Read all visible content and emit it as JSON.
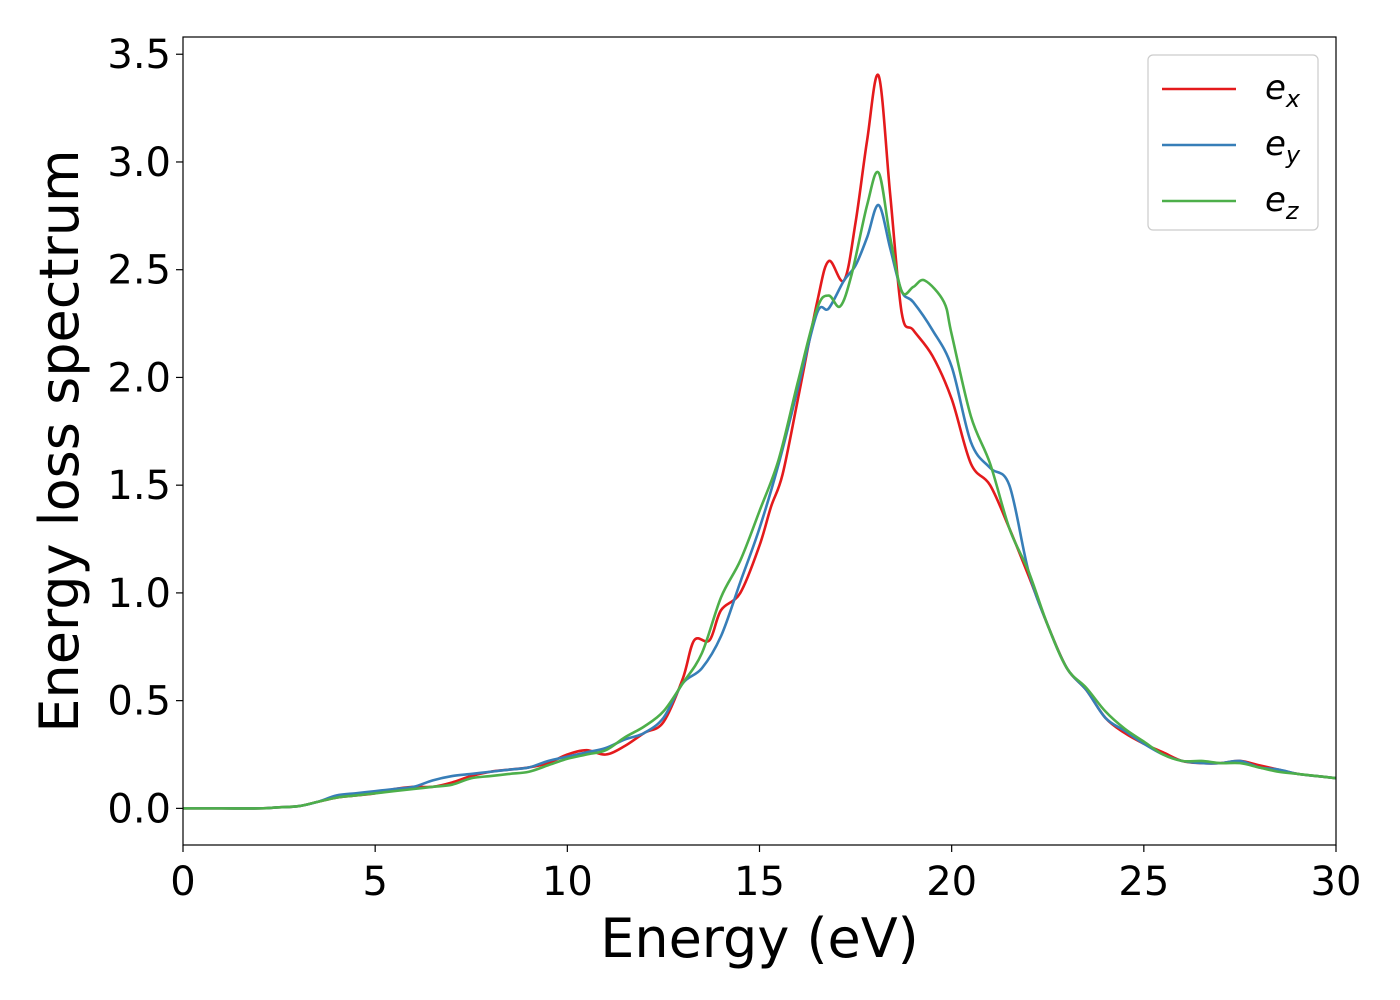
{
  "chart_data": {
    "type": "line",
    "xlabel": "Energy (eV)",
    "ylabel": "Energy loss spectrum",
    "xlim": [
      0,
      30
    ],
    "ylim": [
      -0.17,
      3.58
    ],
    "xticks": [
      0,
      5,
      10,
      15,
      20,
      25,
      30
    ],
    "xtick_labels": [
      "0",
      "5",
      "10",
      "15",
      "20",
      "25",
      "30"
    ],
    "yticks": [
      0.0,
      0.5,
      1.0,
      1.5,
      2.0,
      2.5,
      3.0,
      3.5
    ],
    "ytick_labels": [
      "0.0",
      "0.5",
      "1.0",
      "1.5",
      "2.0",
      "2.5",
      "3.0",
      "3.5"
    ],
    "grid": false,
    "legend_position": "top-right",
    "series": [
      {
        "name": "e",
        "subscript": "x",
        "color": "#e41a1c",
        "x": [
          0,
          1,
          2,
          2.5,
          3,
          3.5,
          4,
          4.5,
          5,
          5.5,
          6,
          6.5,
          7,
          7.5,
          8,
          8.5,
          9,
          9.5,
          10,
          10.5,
          11,
          11.5,
          12,
          12.5,
          13,
          13.3,
          13.7,
          14,
          14.5,
          15,
          15.3,
          15.6,
          16,
          16.5,
          16.8,
          17.2,
          17.5,
          17.8,
          18.1,
          18.4,
          18.7,
          19,
          19.5,
          20,
          20.5,
          21,
          21.5,
          22,
          22.5,
          23,
          23.5,
          24,
          24.5,
          25,
          25.5,
          26,
          26.5,
          27,
          27.5,
          28,
          28.5,
          29,
          29.5,
          30
        ],
        "y": [
          0,
          0,
          0,
          0.005,
          0.01,
          0.03,
          0.05,
          0.06,
          0.07,
          0.09,
          0.1,
          0.1,
          0.12,
          0.15,
          0.17,
          0.18,
          0.19,
          0.21,
          0.25,
          0.27,
          0.25,
          0.29,
          0.35,
          0.4,
          0.6,
          0.78,
          0.78,
          0.92,
          1.0,
          1.22,
          1.4,
          1.55,
          1.9,
          2.35,
          2.54,
          2.45,
          2.72,
          3.1,
          3.4,
          2.85,
          2.3,
          2.22,
          2.1,
          1.9,
          1.6,
          1.5,
          1.3,
          1.08,
          0.85,
          0.65,
          0.55,
          0.42,
          0.35,
          0.3,
          0.26,
          0.22,
          0.21,
          0.21,
          0.22,
          0.2,
          0.18,
          0.16,
          0.15,
          0.14
        ]
      },
      {
        "name": "e",
        "subscript": "y",
        "color": "#377eb8",
        "x": [
          0,
          1,
          2,
          2.5,
          3,
          3.5,
          4,
          4.5,
          5,
          5.5,
          6,
          6.5,
          7,
          7.5,
          8,
          8.5,
          9,
          9.5,
          10,
          10.5,
          11,
          11.5,
          12,
          12.5,
          13,
          13.5,
          14,
          14.5,
          15,
          15.5,
          16,
          16.5,
          16.8,
          17.2,
          17.5,
          17.8,
          18.1,
          18.4,
          18.7,
          19,
          19.5,
          20,
          20.5,
          21,
          21.5,
          22,
          22.5,
          23,
          23.5,
          24,
          24.5,
          25,
          25.5,
          26,
          26.5,
          27,
          27.5,
          28,
          28.5,
          29,
          29.5,
          30
        ],
        "y": [
          0,
          0,
          0,
          0.005,
          0.01,
          0.03,
          0.06,
          0.07,
          0.08,
          0.09,
          0.1,
          0.13,
          0.15,
          0.16,
          0.17,
          0.18,
          0.19,
          0.22,
          0.24,
          0.26,
          0.28,
          0.32,
          0.35,
          0.42,
          0.58,
          0.65,
          0.8,
          1.05,
          1.3,
          1.6,
          1.95,
          2.3,
          2.32,
          2.45,
          2.52,
          2.65,
          2.8,
          2.6,
          2.4,
          2.35,
          2.22,
          2.05,
          1.7,
          1.58,
          1.5,
          1.1,
          0.85,
          0.65,
          0.55,
          0.42,
          0.36,
          0.3,
          0.25,
          0.22,
          0.21,
          0.21,
          0.22,
          0.19,
          0.18,
          0.16,
          0.15,
          0.14
        ]
      },
      {
        "name": "e",
        "subscript": "z",
        "color": "#4daf4a",
        "x": [
          0,
          1,
          2,
          2.5,
          3,
          3.5,
          4,
          4.5,
          5,
          5.5,
          6,
          6.5,
          7,
          7.5,
          8,
          8.5,
          9,
          9.5,
          10,
          10.5,
          11,
          11.5,
          12,
          12.5,
          13,
          13.5,
          14,
          14.5,
          15,
          15.5,
          16,
          16.5,
          16.8,
          17.1,
          17.4,
          17.8,
          18.1,
          18.4,
          18.7,
          19,
          19.3,
          19.8,
          20,
          20.5,
          21,
          21.5,
          22,
          22.5,
          23,
          23.5,
          24,
          24.5,
          25,
          25.5,
          26,
          26.5,
          27,
          27.5,
          28,
          28.5,
          29,
          29.5,
          30
        ],
        "y": [
          0,
          0,
          0,
          0.005,
          0.01,
          0.03,
          0.05,
          0.06,
          0.07,
          0.08,
          0.09,
          0.1,
          0.11,
          0.14,
          0.15,
          0.16,
          0.17,
          0.2,
          0.23,
          0.25,
          0.27,
          0.33,
          0.38,
          0.45,
          0.58,
          0.72,
          0.98,
          1.15,
          1.38,
          1.62,
          1.98,
          2.32,
          2.38,
          2.33,
          2.48,
          2.8,
          2.95,
          2.65,
          2.4,
          2.42,
          2.45,
          2.35,
          2.2,
          1.82,
          1.6,
          1.3,
          1.1,
          0.85,
          0.65,
          0.56,
          0.45,
          0.37,
          0.31,
          0.25,
          0.22,
          0.22,
          0.21,
          0.21,
          0.19,
          0.17,
          0.16,
          0.15,
          0.14
        ]
      }
    ]
  }
}
